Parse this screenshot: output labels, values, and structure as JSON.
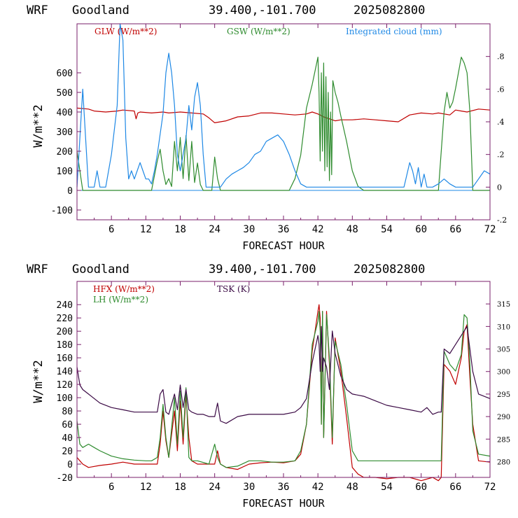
{
  "colors": {
    "glw": "#c00000",
    "gsw": "#2e8b2e",
    "cloud": "#1e88e5",
    "hfx": "#c00000",
    "lh": "#2e8b2e",
    "tsk": "#3b0a45",
    "frame": "#7a1f6b",
    "text": "#000000"
  },
  "chart_data": [
    {
      "type": "line",
      "header": {
        "model": "WRF",
        "station": "Goodland",
        "coords": "39.400,-101.700",
        "date": "2025082800"
      },
      "xlabel": "FORECAST HOUR",
      "ylabel": "W/m**2",
      "xlim": [
        0,
        72
      ],
      "ylim": [
        -150,
        850
      ],
      "y2lim": [
        -0.2,
        1.0
      ],
      "x_ticks": [
        "6",
        "12",
        "18",
        "24",
        "30",
        "36",
        "42",
        "48",
        "54",
        "60",
        "66",
        "72"
      ],
      "y_ticks": [
        "-100",
        "0",
        "100",
        "200",
        "300",
        "400",
        "500",
        "600"
      ],
      "y_tick_values": [
        -100,
        0,
        100,
        200,
        300,
        400,
        500,
        600
      ],
      "y2_ticks": [
        "-.2",
        "0",
        ".2",
        ".4",
        ".6",
        ".8"
      ],
      "y2_tick_values": [
        -0.2,
        0,
        0.2,
        0.4,
        0.6,
        0.8
      ],
      "legend": [
        "GLW (W/m**2)",
        "GSW (W/m**2)",
        "Integrated cloud (mm)"
      ],
      "series": [
        {
          "name": "GLW (W/m**2)",
          "axis": "left",
          "x": [
            0,
            2,
            3,
            5,
            7,
            8,
            10,
            10.3,
            10.6,
            11,
            13,
            15,
            16,
            18,
            20,
            22,
            23,
            24,
            25,
            26,
            28,
            30,
            32,
            34,
            36,
            38,
            40,
            41,
            42,
            43,
            44,
            45,
            46,
            48,
            50,
            52,
            54,
            56,
            58,
            60,
            62,
            63,
            64,
            65,
            66,
            67,
            68,
            70,
            72
          ],
          "y": [
            420,
            415,
            405,
            400,
            405,
            410,
            405,
            365,
            395,
            400,
            395,
            400,
            395,
            400,
            395,
            390,
            370,
            345,
            350,
            355,
            375,
            380,
            395,
            395,
            390,
            385,
            390,
            400,
            390,
            375,
            365,
            355,
            360,
            360,
            365,
            360,
            355,
            350,
            385,
            395,
            390,
            395,
            390,
            385,
            410,
            405,
            400,
            415,
            410
          ]
        },
        {
          "name": "GSW (W/m**2)",
          "axis": "left",
          "x": [
            0,
            0.5,
            1,
            13,
            14,
            14.5,
            15,
            15.5,
            16,
            16.5,
            17,
            17.5,
            18,
            18.5,
            19,
            19.5,
            20,
            20.5,
            21,
            21.5,
            22,
            23.5,
            24,
            24.5,
            25,
            26,
            37,
            38,
            39,
            40,
            41,
            42,
            42.2,
            42.4,
            42.6,
            42.8,
            43,
            43.2,
            43.4,
            43.6,
            43.8,
            44,
            44.2,
            44.4,
            44.6,
            45,
            45.5,
            46,
            47,
            48,
            49,
            50,
            63,
            64,
            64.5,
            65,
            65.5,
            66,
            66.5,
            67,
            67.5,
            68,
            68.5,
            69,
            72
          ],
          "y": [
            200,
            100,
            0,
            0,
            150,
            210,
            100,
            30,
            60,
            20,
            250,
            100,
            270,
            60,
            280,
            50,
            250,
            40,
            140,
            30,
            0,
            0,
            170,
            60,
            0,
            0,
            0,
            60,
            180,
            420,
            540,
            680,
            500,
            150,
            600,
            200,
            650,
            100,
            580,
            120,
            500,
            50,
            400,
            80,
            560,
            500,
            450,
            380,
            250,
            100,
            20,
            0,
            0,
            400,
            500,
            420,
            450,
            520,
            600,
            680,
            650,
            600,
            400,
            0,
            0
          ]
        },
        {
          "name": "Integrated cloud (mm)",
          "axis": "right",
          "x": [
            0,
            0.5,
            1,
            1.5,
            2,
            3,
            3.5,
            4,
            5,
            6,
            7,
            7.5,
            8,
            8.5,
            9,
            9.5,
            10,
            10.5,
            11,
            11.5,
            12,
            12.5,
            13,
            13.5,
            14,
            15,
            15.5,
            16,
            16.5,
            17,
            17.5,
            18,
            19,
            19.5,
            20,
            20.5,
            21,
            21.5,
            22,
            22.5,
            23,
            24,
            24.5,
            25,
            26,
            27,
            28,
            29,
            30,
            31,
            32,
            33,
            34,
            35,
            36,
            37,
            38,
            39,
            40,
            41,
            42,
            57,
            58,
            58.5,
            59,
            59.5,
            60,
            60.5,
            61,
            62,
            63,
            64,
            65,
            66,
            67,
            68,
            69,
            70,
            71,
            72
          ],
          "y": [
            0,
            0.3,
            0.6,
            0.3,
            0,
            0,
            0.1,
            0,
            0,
            0.2,
            0.5,
            1.0,
            0.9,
            0.3,
            0.05,
            0.1,
            0.05,
            0.1,
            0.15,
            0.1,
            0.05,
            0.05,
            0.02,
            0.1,
            0.2,
            0.45,
            0.7,
            0.82,
            0.7,
            0.5,
            0.2,
            0.1,
            0.3,
            0.5,
            0.35,
            0.55,
            0.64,
            0.5,
            0.2,
            0,
            0,
            0,
            0,
            0,
            0.05,
            0.08,
            0.1,
            0.12,
            0.15,
            0.2,
            0.22,
            0.28,
            0.3,
            0.32,
            0.28,
            0.2,
            0.1,
            0.02,
            0,
            0,
            0,
            0,
            0.15,
            0.1,
            0.02,
            0.12,
            0,
            0.08,
            0,
            0,
            0.02,
            0.05,
            0.02,
            0,
            0,
            0,
            0,
            0.05,
            0.1,
            0.08
          ]
        }
      ]
    },
    {
      "type": "line",
      "header": {
        "model": "WRF",
        "station": "Goodland",
        "coords": "39.400,-101.700",
        "date": "2025082800"
      },
      "xlabel": "FORECAST HOUR",
      "ylabel": "W/m**2",
      "xlim": [
        0,
        72
      ],
      "ylim": [
        -20,
        275
      ],
      "y2lim": [
        276.5,
        320
      ],
      "x_ticks": [
        "6",
        "12",
        "18",
        "24",
        "30",
        "36",
        "42",
        "48",
        "54",
        "60",
        "66",
        "72"
      ],
      "y_ticks": [
        "-20",
        "0",
        "20",
        "40",
        "60",
        "80",
        "100",
        "120",
        "140",
        "160",
        "180",
        "200",
        "220",
        "240"
      ],
      "y_tick_values": [
        -20,
        0,
        20,
        40,
        60,
        80,
        100,
        120,
        140,
        160,
        180,
        200,
        220,
        240
      ],
      "y2_ticks": [
        "280",
        "285",
        "290",
        "295",
        "300",
        "305",
        "310",
        "315"
      ],
      "y2_tick_values": [
        280,
        285,
        290,
        295,
        300,
        305,
        310,
        315
      ],
      "legend": [
        "HFX (W/m**2)",
        "LH  (W/m**2)",
        "TSK (K)"
      ],
      "series": [
        {
          "name": "HFX (W/m**2)",
          "axis": "left",
          "x": [
            0,
            0.5,
            1,
            2,
            4,
            6,
            8,
            10,
            12,
            14,
            14.5,
            15,
            15.5,
            16,
            17,
            17.5,
            18,
            18.5,
            19,
            19.5,
            20,
            21,
            23,
            24,
            24.5,
            25,
            26,
            28,
            30,
            32,
            34,
            36,
            38,
            39,
            40,
            41,
            42,
            42.2,
            42.4,
            42.6,
            42.8,
            43,
            43.5,
            44,
            44.5,
            45,
            46,
            47,
            48,
            49,
            50,
            52,
            54,
            56,
            58,
            60,
            62,
            63,
            63.5,
            64,
            65,
            66,
            67,
            67.5,
            68,
            68.5,
            69,
            70,
            72
          ],
          "y": [
            10,
            5,
            0,
            -5,
            -2,
            0,
            3,
            0,
            0,
            0,
            30,
            80,
            35,
            10,
            80,
            20,
            95,
            30,
            105,
            40,
            5,
            0,
            0,
            0,
            20,
            0,
            -5,
            -8,
            0,
            2,
            3,
            2,
            5,
            15,
            60,
            170,
            230,
            240,
            220,
            60,
            230,
            40,
            230,
            150,
            30,
            190,
            140,
            70,
            -5,
            -15,
            -20,
            -20,
            -22,
            -20,
            -20,
            -25,
            -20,
            -25,
            -20,
            150,
            140,
            120,
            160,
            200,
            210,
            130,
            60,
            5,
            3
          ]
        },
        {
          "name": "LH  (W/m**2)",
          "axis": "left",
          "x": [
            0,
            0.5,
            1,
            2,
            3,
            4,
            6,
            8,
            10,
            12,
            13,
            14,
            14.5,
            15,
            15.5,
            16,
            17,
            17.5,
            18,
            18.5,
            19,
            19.5,
            20,
            21,
            23,
            24,
            24.5,
            25,
            26,
            28,
            30,
            32,
            34,
            36,
            38,
            39,
            40,
            41,
            42,
            42.2,
            42.4,
            42.6,
            42.8,
            43,
            43.5,
            44,
            44.5,
            45,
            46,
            47,
            48,
            49,
            50,
            52,
            54,
            56,
            58,
            60,
            62,
            63,
            63.5,
            64,
            65,
            66,
            67,
            67.5,
            68,
            68.5,
            69,
            70,
            72
          ],
          "y": [
            65,
            30,
            25,
            30,
            25,
            20,
            12,
            8,
            6,
            5,
            5,
            10,
            40,
            90,
            40,
            10,
            100,
            30,
            110,
            40,
            115,
            10,
            5,
            5,
            0,
            30,
            10,
            0,
            -5,
            -3,
            5,
            5,
            3,
            3,
            5,
            20,
            60,
            180,
            215,
            230,
            200,
            60,
            230,
            40,
            225,
            160,
            40,
            185,
            150,
            90,
            20,
            5,
            5,
            5,
            5,
            5,
            5,
            5,
            5,
            5,
            5,
            170,
            150,
            140,
            165,
            225,
            220,
            150,
            50,
            15,
            12
          ]
        },
        {
          "name": "TSK (K)",
          "axis": "right",
          "x": [
            0,
            0.5,
            1,
            2,
            4,
            6,
            8,
            10,
            12,
            14,
            14.5,
            15,
            15.5,
            16,
            17,
            17.5,
            18,
            18.5,
            19,
            19.5,
            20,
            21,
            22,
            23,
            24,
            24.5,
            25,
            26,
            28,
            30,
            32,
            34,
            36,
            38,
            39,
            40,
            41,
            42,
            42.2,
            42.4,
            42.6,
            42.8,
            43,
            43.5,
            44,
            44.5,
            45,
            46,
            47,
            48,
            50,
            52,
            54,
            56,
            58,
            60,
            61,
            62,
            63,
            63.5,
            64,
            65,
            66,
            67,
            67.5,
            68,
            68.5,
            69,
            70,
            72
          ],
          "y": [
            301,
            297,
            296,
            295,
            293,
            292,
            291.5,
            291,
            291,
            291,
            295,
            296,
            291,
            290.5,
            295,
            291.5,
            297,
            292,
            296,
            291.5,
            291,
            290.5,
            290.5,
            290,
            290,
            293,
            289,
            288.5,
            290,
            290.5,
            290.5,
            290.5,
            290.5,
            291,
            292,
            294,
            302,
            308,
            306,
            300,
            310,
            300,
            303,
            301,
            296,
            309,
            304,
            299,
            296,
            295,
            294.5,
            293.5,
            292.5,
            292,
            291.5,
            291,
            292,
            290.5,
            291,
            291,
            305,
            304,
            306,
            308,
            309,
            310,
            305,
            300,
            295,
            294
          ]
        }
      ]
    }
  ]
}
